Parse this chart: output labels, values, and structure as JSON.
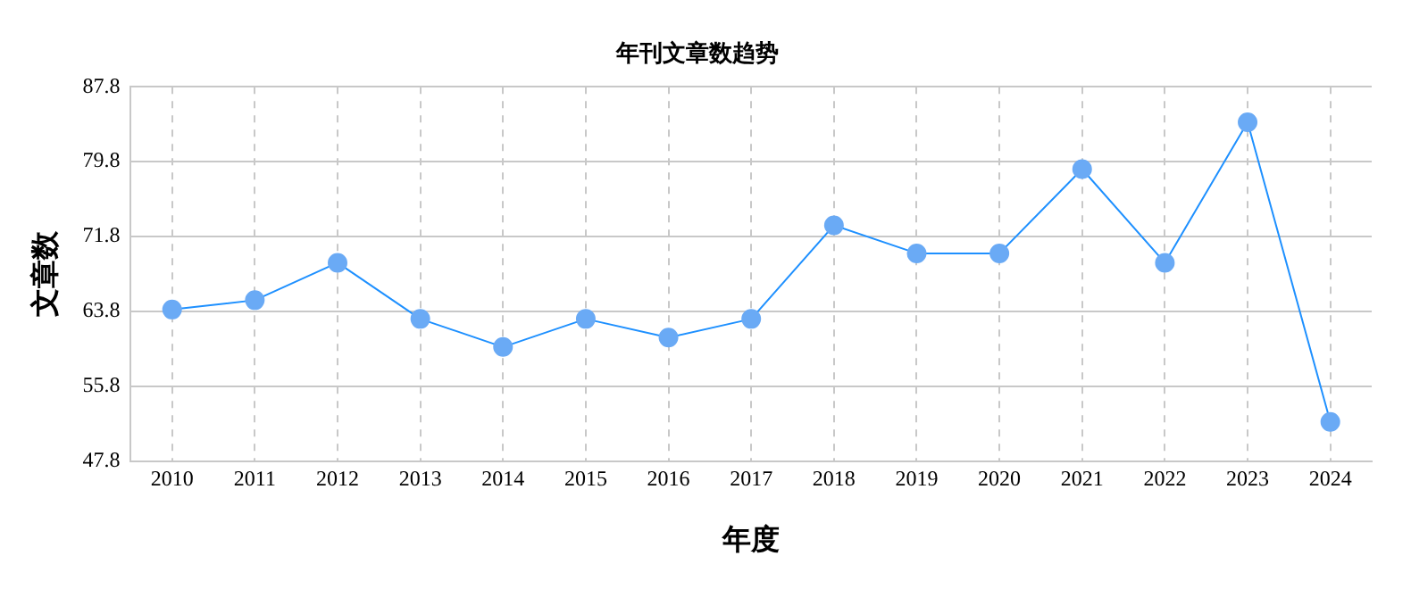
{
  "chart_data": {
    "type": "line",
    "title": "年刊文章数趋势",
    "xlabel": "年度",
    "ylabel": "文章数",
    "categories": [
      "2010",
      "2011",
      "2012",
      "2013",
      "2014",
      "2015",
      "2016",
      "2017",
      "2018",
      "2019",
      "2020",
      "2021",
      "2022",
      "2023",
      "2024"
    ],
    "series": [
      {
        "color": "#1e90ff",
        "values": [
          64,
          65,
          69,
          63,
          60,
          63,
          61,
          63,
          73,
          70,
          70,
          79,
          69,
          84,
          52
        ]
      }
    ],
    "ylim": [
      47.8,
      87.8
    ],
    "yticks": [
      47.8,
      55.8,
      63.8,
      71.8,
      79.8,
      87.8
    ],
    "grid": true,
    "marker": "circle",
    "legend": false
  }
}
